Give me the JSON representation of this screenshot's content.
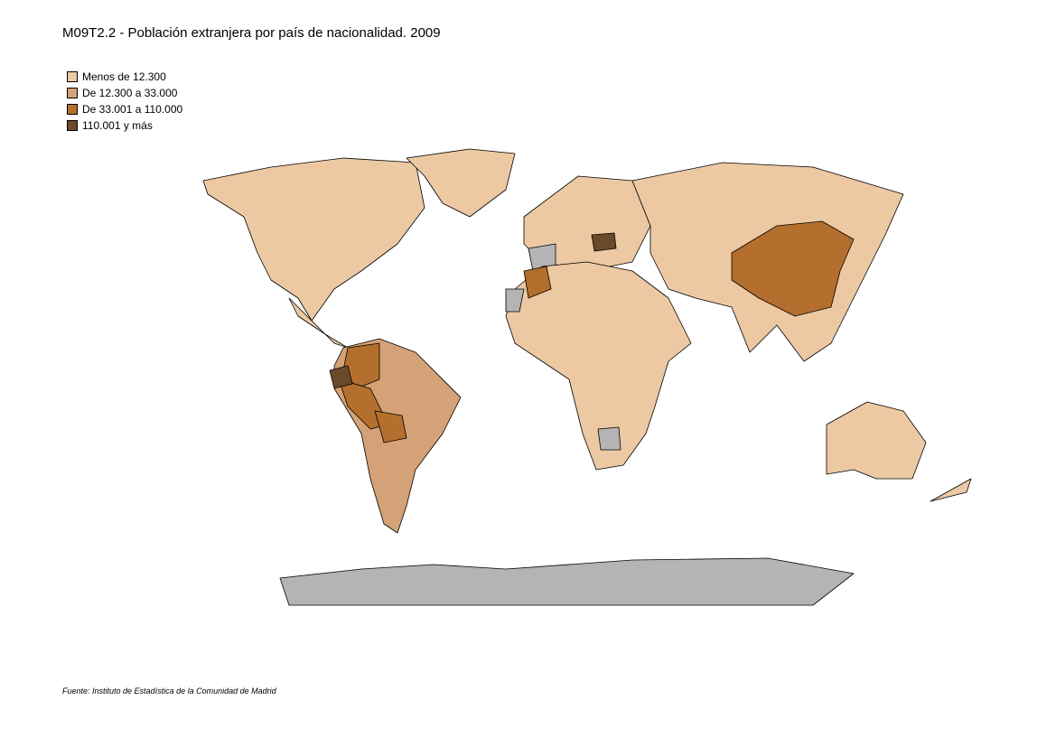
{
  "title": "M09T2.2 - Población extranjera por país de nacionalidad. 2009",
  "legend": [
    {
      "label": "Menos de 12.300",
      "color": "#ecc9a3"
    },
    {
      "label": "De 12.300 a 33.000",
      "color": "#d4a276"
    },
    {
      "label": "De 33.001 a 110.000",
      "color": "#b46e2d"
    },
    {
      "label": "110.001 y más",
      "color": "#6b4a2a"
    }
  ],
  "source": "Fuente: Instituto de Estadística de la Comunidad de Madrid"
}
